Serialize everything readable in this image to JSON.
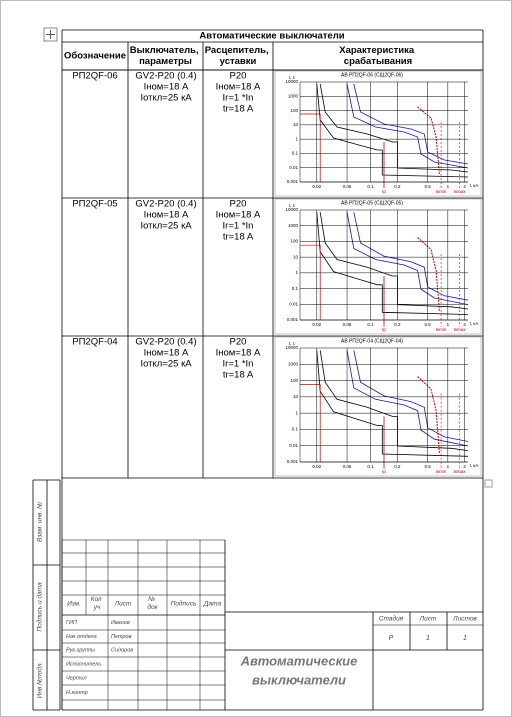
{
  "table": {
    "title": "Автоматические выключатели",
    "headers": [
      "Обозначение",
      "Выключатель, параметры",
      "Расцепитель, уставки",
      "Характеристика срабатывания"
    ],
    "rows": [
      {
        "designation": "РП2QF-06",
        "breaker": [
          "GV2-P20 (0.4)",
          "Iном=18 А",
          "Iоткл=25 кА"
        ],
        "release": [
          "P20",
          "Iном=18 А",
          "Ir=1 *In",
          "tr=18 A"
        ],
        "chart": {
          "title": "АВ РП2QF-06 (СЩ2QF-06)"
        }
      },
      {
        "designation": "РП2QF-05",
        "breaker": [
          "GV2-P20 (0.4)",
          "Iном=18 А",
          "Iоткл=25 кА"
        ],
        "release": [
          "P20",
          "Iном=18 А",
          "Ir=1 *In",
          "tr=18 A"
        ],
        "chart": {
          "title": "АВ РП2QF-05 (СЩ2QF-05)"
        }
      },
      {
        "designation": "РП2QF-04",
        "breaker": [
          "GV2-P20 (0.4)",
          "Iном=18 А",
          "Iоткл=25 кА"
        ],
        "release": [
          "P20",
          "Iном=18 А",
          "Ir=1 *In",
          "tr=18 A"
        ],
        "chart": {
          "title": "АВ РП2QF-04 (СЩ2QF-04)"
        }
      }
    ],
    "chart_axes": {
      "y_label": "t, c",
      "x_label": "I, кА",
      "yticks": [
        "10000",
        "1000",
        "100",
        "10",
        "1",
        "0.1",
        "0.01",
        "0.001"
      ],
      "xticks": [
        "0.02",
        "0.05",
        "0.1",
        "0.2",
        "0.5",
        "1",
        "2"
      ],
      "markers": [
        "Ip",
        "Iкmin",
        "Iкmax"
      ]
    }
  },
  "side_labels": [
    "Взам. инв. №",
    "Подпись и дата",
    "Инв.№подл."
  ],
  "stamp": {
    "headers": [
      "Изм.",
      "Кол уч",
      "Лист",
      "№ док",
      "Подпись",
      "Дата"
    ],
    "roles": [
      "ГИП",
      "Нач.отдела",
      "Рук.группы",
      "Исполнитель",
      "Чертил",
      "Н.контр"
    ],
    "names": [
      "Иванов",
      "Петров",
      "Сидоров"
    ],
    "stage_headers": [
      "Стадия",
      "Лист",
      "Листов"
    ],
    "stage_values": [
      "Р",
      "1",
      "1"
    ],
    "title": [
      "Автоматические",
      "выключатели"
    ]
  }
}
